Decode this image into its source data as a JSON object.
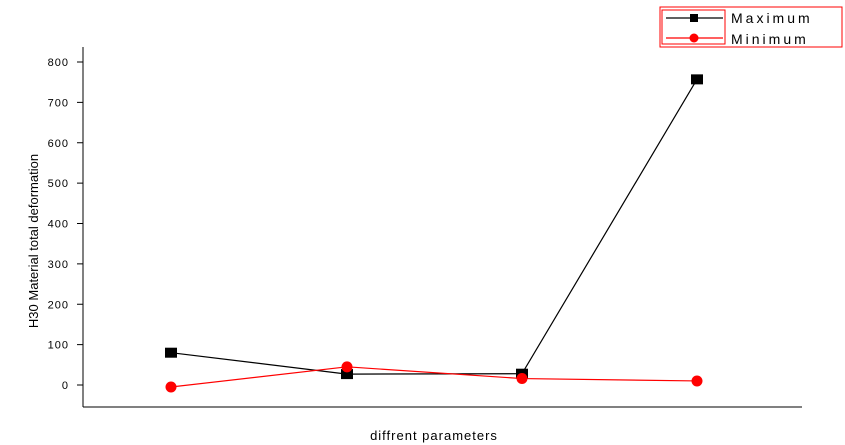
{
  "chart_data": {
    "type": "line",
    "title": "",
    "xlabel": "diffrent parameters",
    "ylabel": "H30 Material total deformation",
    "ylim": [
      -50,
      840
    ],
    "yticks": [
      0,
      100,
      200,
      300,
      400,
      500,
      600,
      700,
      800
    ],
    "grid": false,
    "legend_position": "top-right",
    "x": [
      1,
      2,
      3,
      4
    ],
    "series": [
      {
        "name": "Maximum",
        "color": "#000000",
        "marker": "square",
        "values": [
          80,
          27,
          28,
          757
        ]
      },
      {
        "name": "Minimum",
        "color": "#ff0000",
        "marker": "circle",
        "values": [
          -5,
          45,
          16,
          10
        ]
      }
    ]
  }
}
